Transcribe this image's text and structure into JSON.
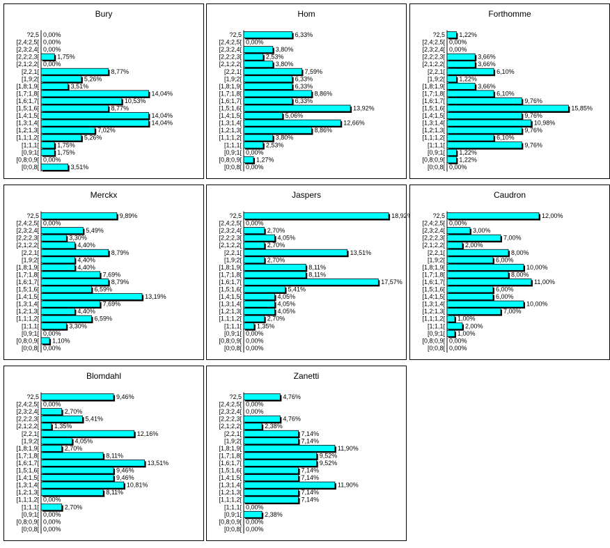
{
  "chart_data": {
    "type": "bar",
    "orientation": "horizontal",
    "categories": [
      "?2,5",
      "[2,4;2,5[",
      "[2,3;2,4[",
      "[2,2;2,3[",
      "[2,1;2,2[",
      "[2,2,1[",
      "[1,9;2[",
      "[1,8;1,9[",
      "[1,7;1,8[",
      "[1,6;1,7[",
      "[1,5;1,6[",
      "[1,4;1,5[",
      "[1,3;1,4[",
      "[1,2;1,3[",
      "[1,1;1,2[",
      "[1;1,1[",
      "[0,9;1[",
      "[0,8;0,9[",
      "[0;0,8["
    ],
    "panels": [
      {
        "title": "Bury",
        "values": [
          0,
          0,
          0,
          1.75,
          0,
          8.77,
          5.26,
          3.51,
          14.04,
          10.53,
          8.77,
          14.04,
          14.04,
          7.02,
          5.26,
          1.75,
          1.75,
          0,
          3.51
        ],
        "labels": [
          "0,00%",
          "0,00%",
          "0,00%",
          "1,75%",
          "0,00%",
          "8,77%",
          "5,26%",
          "3,51%",
          "14,04%",
          "10,53%",
          "8,77%",
          "14,04%",
          "14,04%",
          "7,02%",
          "5,26%",
          "1,75%",
          "1,75%",
          "0,00%",
          "3,51%"
        ]
      },
      {
        "title": "Hom",
        "values": [
          6.33,
          0,
          3.8,
          2.53,
          3.8,
          7.59,
          6.33,
          6.33,
          8.86,
          6.33,
          13.92,
          5.06,
          12.66,
          8.86,
          3.8,
          2.53,
          0,
          1.27,
          0
        ],
        "labels": [
          "6,33%",
          "0,00%",
          "3,80%",
          "2,53%",
          "3,80%",
          "7,59%",
          "6,33%",
          "6,33%",
          "8,86%",
          "6,33%",
          "13,92%",
          "5,06%",
          "12,66%",
          "8,86%",
          "3,80%",
          "2,53%",
          "0,00%",
          "1,27%",
          "0,00%"
        ]
      },
      {
        "title": "Forthomme",
        "values": [
          1.22,
          0,
          0,
          3.66,
          3.66,
          6.1,
          1.22,
          3.66,
          6.1,
          9.76,
          15.85,
          9.76,
          10.98,
          9.76,
          6.1,
          9.76,
          1.22,
          1.22,
          0
        ],
        "labels": [
          "1,22%",
          "0,00%",
          "0,00%",
          "3,66%",
          "3,66%",
          "6,10%",
          "1,22%",
          "3,66%",
          "6,10%",
          "9,76%",
          "15,85%",
          "9,76%",
          "10,98%",
          "9,76%",
          "6,10%",
          "9,76%",
          "1,22%",
          "1,22%",
          "0,00%"
        ]
      },
      {
        "title": "Merckx",
        "values": [
          9.89,
          0,
          5.49,
          3.3,
          4.4,
          8.79,
          4.4,
          4.4,
          7.69,
          8.79,
          6.59,
          13.19,
          7.69,
          4.4,
          6.59,
          3.3,
          0,
          1.1,
          0
        ],
        "labels": [
          "9,89%",
          "0,00%",
          "5,49%",
          "3,30%",
          "4,40%",
          "8,79%",
          "4,40%",
          "4,40%",
          "7,69%",
          "8,79%",
          "6,59%",
          "13,19%",
          "7,69%",
          "4,40%",
          "6,59%",
          "3,30%",
          "0,00%",
          "1,10%",
          "0,00%"
        ]
      },
      {
        "title": "Jaspers",
        "values": [
          18.92,
          0,
          2.7,
          4.05,
          2.7,
          13.51,
          2.7,
          8.11,
          8.11,
          17.57,
          5.41,
          4.05,
          4.05,
          4.05,
          2.7,
          1.35,
          0,
          0,
          0
        ],
        "labels": [
          "18,92%",
          "0,00%",
          "2,70%",
          "4,05%",
          "2,70%",
          "13,51%",
          "2,70%",
          "8,11%",
          "8,11%",
          "17,57%",
          "5,41%",
          "4,05%",
          "4,05%",
          "4,05%",
          "2,70%",
          "1,35%",
          "0,00%",
          "0,00%",
          "0,00%"
        ]
      },
      {
        "title": "Caudron",
        "values": [
          12,
          0,
          3,
          7,
          2,
          8,
          6,
          10,
          8,
          11,
          6,
          6,
          10,
          7,
          1,
          2,
          1,
          0,
          0
        ],
        "labels": [
          "12,00%",
          "0,00%",
          "3,00%",
          "7,00%",
          "2,00%",
          "8,00%",
          "6,00%",
          "10,00%",
          "8,00%",
          "11,00%",
          "6,00%",
          "6,00%",
          "10,00%",
          "7,00%",
          "1,00%",
          "2,00%",
          "1,00%",
          "0,00%",
          "0,00%"
        ]
      },
      {
        "title": "Blomdahl",
        "values": [
          9.46,
          0,
          2.7,
          5.41,
          1.35,
          12.16,
          4.05,
          2.7,
          8.11,
          13.51,
          9.46,
          9.46,
          10.81,
          8.11,
          0,
          2.7,
          0,
          0,
          0
        ],
        "labels": [
          "9,46%",
          "0,00%",
          "2,70%",
          "5,41%",
          "1,35%",
          "12,16%",
          "4,05%",
          "2,70%",
          "8,11%",
          "13,51%",
          "9,46%",
          "9,46%",
          "10,81%",
          "8,11%",
          "0,00%",
          "2,70%",
          "0,00%",
          "0,00%",
          "0,00%"
        ]
      },
      {
        "title": "Zanetti",
        "values": [
          4.76,
          0,
          0,
          4.76,
          2.38,
          7.14,
          7.14,
          11.9,
          9.52,
          9.52,
          7.14,
          7.14,
          11.9,
          7.14,
          7.14,
          0,
          2.38,
          0,
          0
        ],
        "labels": [
          "4,76%",
          "0,00%",
          "0,00%",
          "4,76%",
          "2,38%",
          "7,14%",
          "7,14%",
          "11,90%",
          "9,52%",
          "9,52%",
          "7,14%",
          "7,14%",
          "11,90%",
          "7,14%",
          "7,14%",
          "0,00%",
          "2,38%",
          "0,00%",
          "0,00%"
        ]
      }
    ],
    "colors": {
      "bar": "#00ffff",
      "shadow": "#000000",
      "border": "#000000"
    }
  }
}
